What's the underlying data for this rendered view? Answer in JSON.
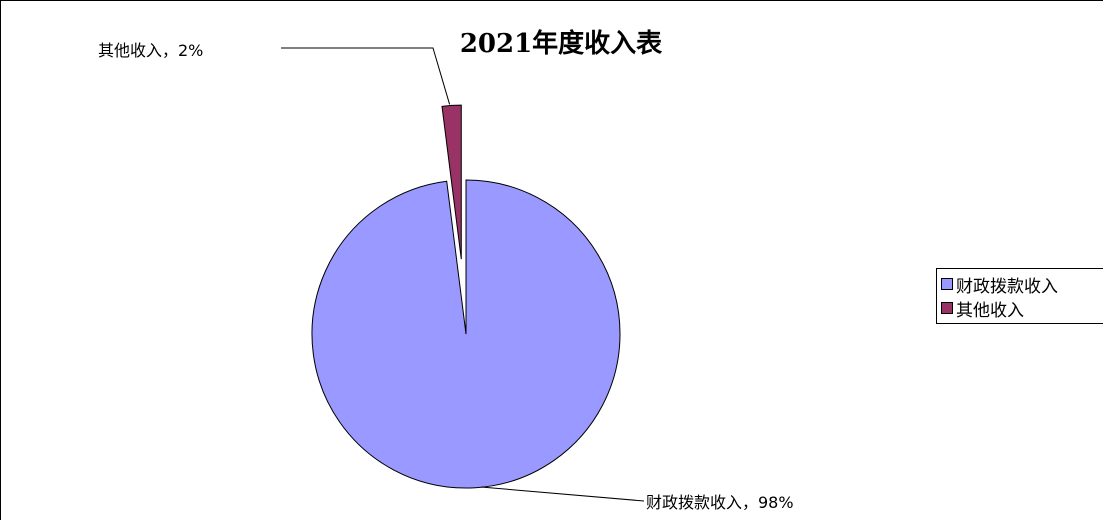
{
  "chart_data": {
    "type": "pie",
    "title": "2021年度收入表",
    "categories": [
      "财政拨款收入",
      "其他收入"
    ],
    "values": [
      98,
      2
    ],
    "data_labels": [
      "财政拨款收入，98%",
      "其他收入，2%"
    ],
    "colors": [
      "#9999ff",
      "#993366"
    ],
    "exploded_slice": "其他收入",
    "legend_position": "right",
    "legend": [
      "财政拨款收入",
      "其他收入"
    ]
  }
}
